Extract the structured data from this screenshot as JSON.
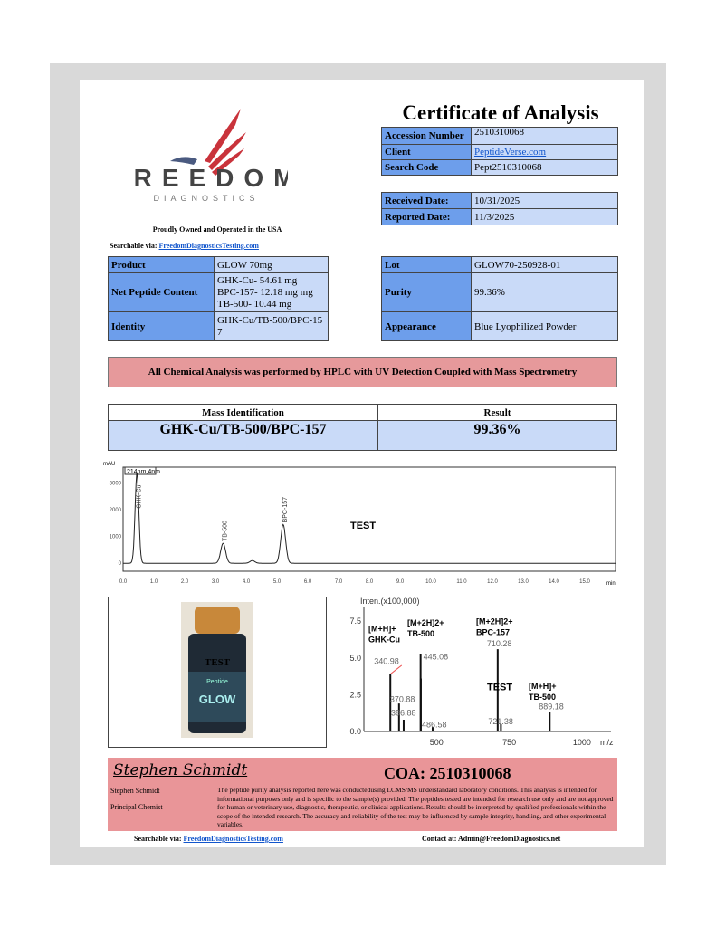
{
  "header": {
    "title": "Certificate of Analysis",
    "brand_name": "FREEDOM",
    "brand_sub": "DIAGNOSTICS",
    "tagline": "Proudly Owned and Operated in the USA",
    "searchable_label": "Searchable via: ",
    "searchable_link": "FreedomDiagnosticsTesting.com"
  },
  "info_table": [
    {
      "label": "Accession Number",
      "value": "2510310068"
    },
    {
      "label": "Client",
      "value": "PeptideVerse.com"
    },
    {
      "label": "Search Code",
      "value": "Pept2510310068"
    }
  ],
  "dates_table": [
    {
      "label": "Received Date:",
      "value": "10/31/2025"
    },
    {
      "label": "Reported Date:",
      "value": "11/3/2025"
    }
  ],
  "product_table": [
    {
      "label": "Product",
      "value": "GLOW 70mg"
    },
    {
      "label": "Net Peptide Content",
      "lines": [
        "GHK-Cu- 54.61 mg",
        "BPC-157- 12.18 mg mg",
        "TB-500- 10.44 mg"
      ]
    },
    {
      "label": "Identity",
      "value": "GHK-Cu/TB-500/BPC-157"
    }
  ],
  "lot_table": [
    {
      "label": "Lot",
      "value": "GLOW70-250928-01"
    },
    {
      "label": "Purity",
      "value": "99.36%"
    },
    {
      "label": "Appearance",
      "value": "Blue Lyophilized Powder"
    }
  ],
  "banner": "All Chemical Analysis was performed by HPLC with UV Detection Coupled with Mass Spectrometry",
  "mass_table": {
    "col1": "Mass Identification",
    "col2": "Result",
    "value1": "GHK-Cu/TB-500/BPC-157",
    "value2": "99.36%"
  },
  "watermark": "TEST",
  "vial": {
    "brand": "Peptide",
    "name": "GLOW"
  },
  "chart_data": [
    {
      "type": "line",
      "title": "",
      "ylabel": "mAU",
      "xlabel": "min",
      "legend": "214nm,4nm",
      "xlim": [
        0,
        16
      ],
      "ylim": [
        -300,
        3600
      ],
      "xticks": [
        "0.0",
        "1.0",
        "2.0",
        "3.0",
        "4.0",
        "5.0",
        "6.0",
        "7.0",
        "8.0",
        "9.0",
        "10.0",
        "11.0",
        "12.0",
        "13.0",
        "14.0",
        "15.0"
      ],
      "yticks": [
        0,
        1000,
        2000,
        3000
      ],
      "peaks": [
        {
          "name": "GHK-Cu",
          "rt": 0.45,
          "height": 3400
        },
        {
          "name": "TB-500",
          "rt": 3.25,
          "height": 750
        },
        {
          "name": "",
          "rt": 4.2,
          "height": 100
        },
        {
          "name": "BPC-157",
          "rt": 5.2,
          "height": 1450
        }
      ]
    },
    {
      "type": "bar",
      "title": "Inten.(x100,000)",
      "xlabel": "m/z",
      "xlim": [
        250,
        1100
      ],
      "ylim": [
        0,
        8.5
      ],
      "xticks": [
        500,
        750,
        1000
      ],
      "yticks": [
        "0.0",
        "2.5",
        "5.0",
        "7.5"
      ],
      "peaks": [
        {
          "mz": 340.98,
          "value": 3.9
        },
        {
          "mz": 370.88,
          "value": 1.9
        },
        {
          "mz": 386.88,
          "value": 0.8
        },
        {
          "mz": 445.08,
          "value": 5.3
        },
        {
          "mz": 446,
          "value": 3.6
        },
        {
          "mz": 486.58,
          "value": 0.3
        },
        {
          "mz": 710.28,
          "value": 5.6
        },
        {
          "mz": 721.38,
          "value": 0.5
        },
        {
          "mz": 889.18,
          "value": 1.3
        }
      ],
      "annotations": [
        {
          "text": "[M+H]+",
          "sub": "GHK-Cu"
        },
        {
          "text": "[M+2H]2+",
          "sub": "TB-500"
        },
        {
          "text": "[M+2H]2+",
          "sub": "BPC-157"
        },
        {
          "text": "[M+H]+",
          "sub": "TB-500"
        }
      ],
      "labels": [
        "340.98",
        "370.88",
        "386.88",
        "445.08",
        "486.58",
        "710.28",
        "721.38",
        "889.18"
      ]
    }
  ],
  "footer": {
    "signature": "Stephen Schmidt",
    "coa": "COA: 2510310068",
    "name": "Stephen Schmidt",
    "role": "Principal Chemist",
    "disclaimer": "The peptide purity analysis reported here was conductedusing LCMS/MS understandard laboratory conditions. This analysis is intended for informational purposes only and is specific to the sample(s) provided. The peptides tested are intended for research use only and are not approved for human or veterinary use, diagnostic, therapeutic, or clinical applications. Results should be interpreted by qualified professionals within the scope of the intended research. The accuracy and reliability of the test may be influenced by sample integrity, handling, and other experimental variables.",
    "searchable_label": "Searchable via: ",
    "searchable_link": "FreedomDiagnosticsTesting.com",
    "contact": "Contact at: Admin@FreedomDiagnostics.net"
  },
  "colors": {
    "label_blue": "#6d9eeb",
    "value_blue": "#c9daf8",
    "banner_red": "#e6999b",
    "footer_red": "#e99598"
  }
}
